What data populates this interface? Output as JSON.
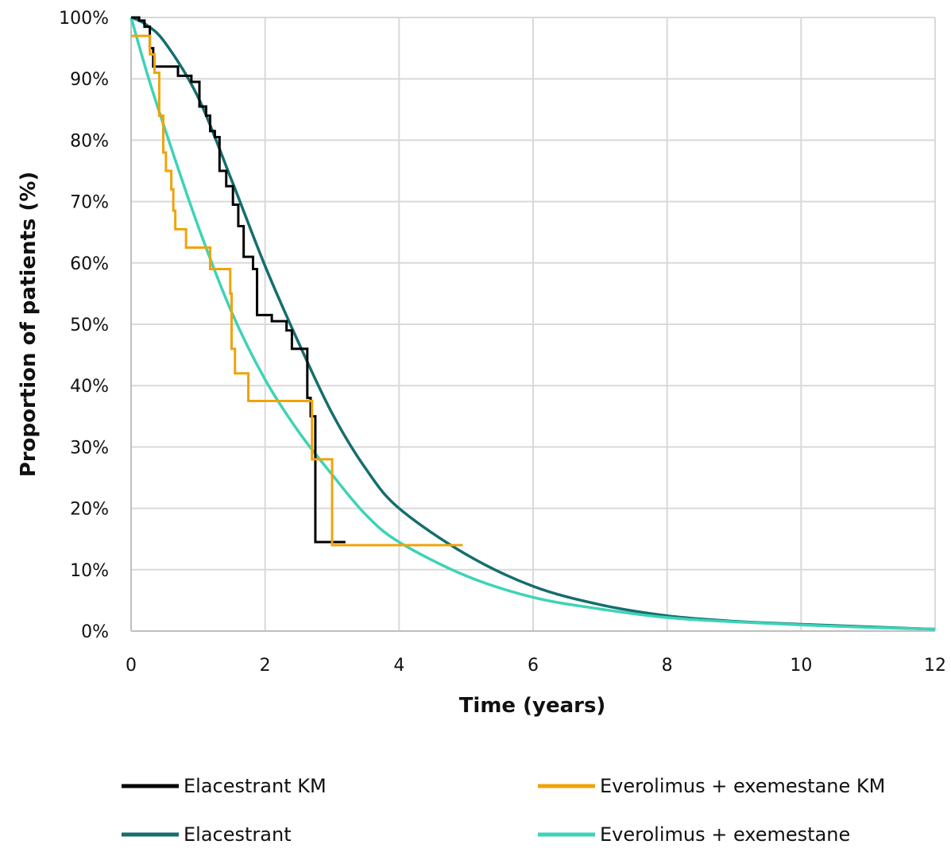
{
  "chart_data": {
    "type": "line",
    "title": "",
    "xlabel": "Time (years)",
    "ylabel": "Proportion of patients (%)",
    "xlim": [
      0,
      12
    ],
    "ylim": [
      0,
      100
    ],
    "x_ticks": [
      0,
      2,
      4,
      6,
      8,
      10,
      12
    ],
    "y_ticks": [
      0,
      10,
      20,
      30,
      40,
      50,
      60,
      70,
      80,
      90,
      100
    ],
    "y_tick_suffix": "%",
    "grid": true,
    "legend_position": "bottom",
    "series": [
      {
        "name": "Elacestrant KM",
        "color": "#000000",
        "style": "step",
        "points": [
          [
            0,
            100
          ],
          [
            0.12,
            100
          ],
          [
            0.12,
            99.5
          ],
          [
            0.2,
            99.5
          ],
          [
            0.2,
            98.5
          ],
          [
            0.28,
            98.5
          ],
          [
            0.28,
            95
          ],
          [
            0.33,
            95
          ],
          [
            0.33,
            92
          ],
          [
            0.7,
            92
          ],
          [
            0.7,
            90.5
          ],
          [
            0.9,
            90.5
          ],
          [
            0.9,
            89.5
          ],
          [
            1.02,
            89.5
          ],
          [
            1.02,
            85.5
          ],
          [
            1.12,
            85.5
          ],
          [
            1.12,
            84
          ],
          [
            1.18,
            84
          ],
          [
            1.18,
            81.5
          ],
          [
            1.25,
            81.5
          ],
          [
            1.25,
            80.5
          ],
          [
            1.32,
            80.5
          ],
          [
            1.32,
            75
          ],
          [
            1.42,
            75
          ],
          [
            1.42,
            72.5
          ],
          [
            1.52,
            72.5
          ],
          [
            1.52,
            69.5
          ],
          [
            1.6,
            69.5
          ],
          [
            1.6,
            66
          ],
          [
            1.68,
            66
          ],
          [
            1.68,
            61
          ],
          [
            1.82,
            61
          ],
          [
            1.82,
            59
          ],
          [
            1.88,
            59
          ],
          [
            1.88,
            51.5
          ],
          [
            2.1,
            51.5
          ],
          [
            2.1,
            50.5
          ],
          [
            2.32,
            50.5
          ],
          [
            2.32,
            49
          ],
          [
            2.4,
            49
          ],
          [
            2.4,
            46
          ],
          [
            2.63,
            46
          ],
          [
            2.63,
            38
          ],
          [
            2.68,
            38
          ],
          [
            2.68,
            35
          ],
          [
            2.75,
            35
          ],
          [
            2.75,
            14.5
          ],
          [
            3.2,
            14.5
          ]
        ]
      },
      {
        "name": "Everolimus + exemestane KM",
        "color": "#F0A30A",
        "style": "step",
        "points": [
          [
            0,
            97
          ],
          [
            0.28,
            97
          ],
          [
            0.28,
            94
          ],
          [
            0.35,
            94
          ],
          [
            0.35,
            91
          ],
          [
            0.42,
            91
          ],
          [
            0.42,
            84
          ],
          [
            0.48,
            84
          ],
          [
            0.48,
            78
          ],
          [
            0.52,
            78
          ],
          [
            0.52,
            75
          ],
          [
            0.6,
            75
          ],
          [
            0.6,
            72
          ],
          [
            0.63,
            72
          ],
          [
            0.63,
            68.5
          ],
          [
            0.66,
            68.5
          ],
          [
            0.66,
            65.5
          ],
          [
            0.82,
            65.5
          ],
          [
            0.82,
            62.5
          ],
          [
            1.18,
            62.5
          ],
          [
            1.18,
            59
          ],
          [
            1.48,
            59
          ],
          [
            1.48,
            55
          ],
          [
            1.5,
            55
          ],
          [
            1.5,
            46
          ],
          [
            1.55,
            46
          ],
          [
            1.55,
            42
          ],
          [
            1.75,
            42
          ],
          [
            1.75,
            37.5
          ],
          [
            2.7,
            37.5
          ],
          [
            2.7,
            28
          ],
          [
            3.0,
            28
          ],
          [
            3.0,
            14
          ],
          [
            4.95,
            14
          ]
        ]
      },
      {
        "name": "Elacestrant",
        "color": "#156E6E",
        "style": "smooth",
        "points": [
          [
            0,
            100
          ],
          [
            0.2,
            99
          ],
          [
            0.5,
            96
          ],
          [
            1,
            87
          ],
          [
            1.5,
            73.5
          ],
          [
            2,
            59.5
          ],
          [
            2.5,
            47
          ],
          [
            3,
            35.5
          ],
          [
            3.5,
            26.5
          ],
          [
            4,
            20
          ],
          [
            5,
            12.5
          ],
          [
            6,
            7.3
          ],
          [
            7,
            4.3
          ],
          [
            8,
            2.5
          ],
          [
            9,
            1.6
          ],
          [
            10,
            1.1
          ],
          [
            11,
            0.7
          ],
          [
            12,
            0.3
          ]
        ]
      },
      {
        "name": "Everolimus + exemestane",
        "color": "#3DD3B7",
        "style": "smooth",
        "points": [
          [
            0,
            100
          ],
          [
            0.25,
            90.5
          ],
          [
            0.5,
            82
          ],
          [
            1,
            66
          ],
          [
            1.5,
            52
          ],
          [
            2,
            41
          ],
          [
            2.5,
            32.5
          ],
          [
            3,
            25.5
          ],
          [
            3.5,
            19
          ],
          [
            4,
            14.5
          ],
          [
            5,
            9
          ],
          [
            6,
            5.5
          ],
          [
            7,
            3.6
          ],
          [
            8,
            2.2
          ],
          [
            9,
            1.5
          ],
          [
            10,
            1
          ],
          [
            11,
            0.6
          ],
          [
            12,
            0.3
          ]
        ]
      }
    ]
  }
}
